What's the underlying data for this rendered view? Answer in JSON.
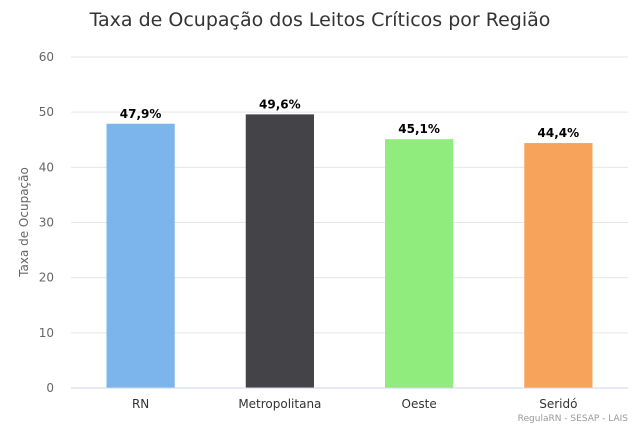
{
  "chart_data": {
    "type": "bar",
    "title": "Taxa de Ocupação dos Leitos Críticos por Região",
    "ylabel": "Taxa de Ocupação",
    "xlabel": "",
    "ylim": [
      0,
      60
    ],
    "yticks": [
      0,
      10,
      20,
      30,
      40,
      50,
      60
    ],
    "grid": true,
    "legend": "none",
    "categories": [
      "RN",
      "Metropolitana",
      "Oeste",
      "Seridó"
    ],
    "values": [
      47.9,
      49.6,
      45.1,
      44.4
    ],
    "data_labels": [
      "47,9%",
      "49,6%",
      "45,1%",
      "44,4%"
    ],
    "colors": [
      "#7cb5ec",
      "#434348",
      "#90ed7d",
      "#f7a35c"
    ]
  },
  "credit": "RegulaRN - SESAP - LAIS"
}
